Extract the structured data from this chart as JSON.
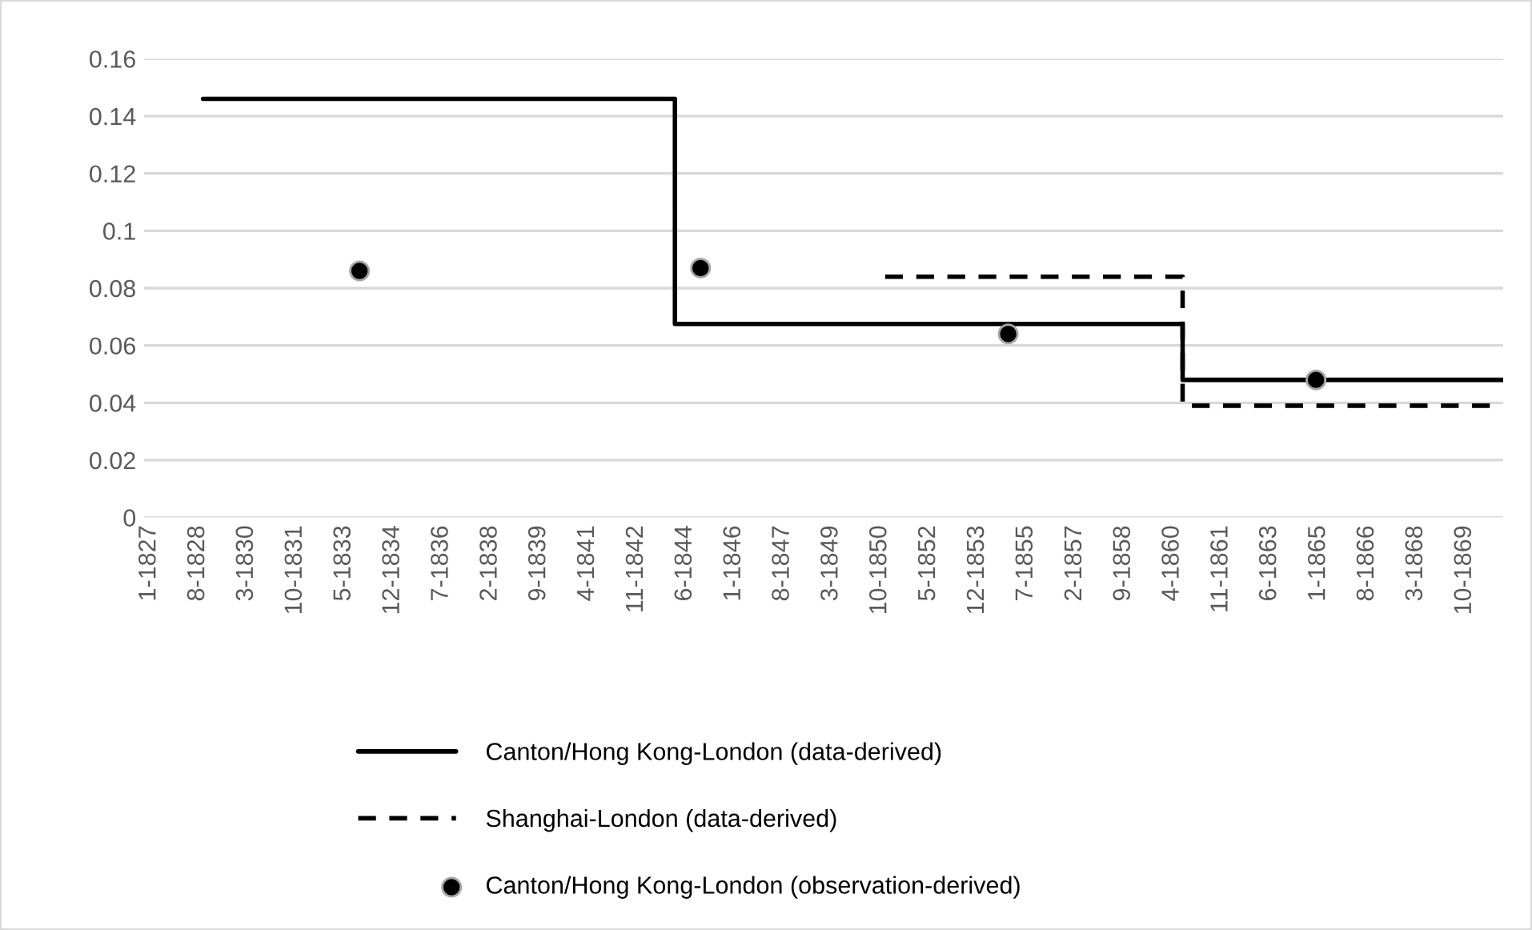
{
  "chart_data": {
    "type": "step",
    "series": [
      {
        "name": "Canton/Hong Kong-London (data-derived)",
        "color": "#000000",
        "line_style": "solid",
        "x": [
          "1828-10",
          "1844-02",
          "1860-08",
          "1871-01"
        ],
        "values": [
          0.146,
          0.0675,
          0.048,
          0.048
        ]
      },
      {
        "name": "Shanghai-London (data-derived)",
        "color": "#000000",
        "line_style": "dashed",
        "x": [
          "1850-12",
          "1860-08",
          "1870-08"
        ],
        "values": [
          0.084,
          0.039,
          0.039
        ]
      },
      {
        "name": "Canton/Hong Kong-London (observation-derived)",
        "type": "scatter",
        "color": "#000000",
        "marker": "circle",
        "x": [
          "1833-11",
          "1844-12",
          "1854-12",
          "1864-12"
        ],
        "values": [
          0.086,
          0.087,
          0.064,
          0.048
        ]
      }
    ],
    "xlim": [
      "1826-11",
      "1871-01"
    ],
    "xticks": [
      {
        "value": "1827-01",
        "label": "1-1827"
      },
      {
        "value": "1828-08",
        "label": "8-1828"
      },
      {
        "value": "1830-03",
        "label": "3-1830"
      },
      {
        "value": "1831-10",
        "label": "10-1831"
      },
      {
        "value": "1833-05",
        "label": "5-1833"
      },
      {
        "value": "1834-12",
        "label": "12-1834"
      },
      {
        "value": "1836-07",
        "label": "7-1836"
      },
      {
        "value": "1838-02",
        "label": "2-1838"
      },
      {
        "value": "1839-09",
        "label": "9-1839"
      },
      {
        "value": "1841-04",
        "label": "4-1841"
      },
      {
        "value": "1842-11",
        "label": "11-1842"
      },
      {
        "value": "1844-06",
        "label": "6-1844"
      },
      {
        "value": "1846-01",
        "label": "1-1846"
      },
      {
        "value": "1847-08",
        "label": "8-1847"
      },
      {
        "value": "1849-03",
        "label": "3-1849"
      },
      {
        "value": "1850-10",
        "label": "10-1850"
      },
      {
        "value": "1852-05",
        "label": "5-1852"
      },
      {
        "value": "1853-12",
        "label": "12-1853"
      },
      {
        "value": "1855-07",
        "label": "7-1855"
      },
      {
        "value": "1857-02",
        "label": "2-1857"
      },
      {
        "value": "1858-09",
        "label": "9-1858"
      },
      {
        "value": "1860-04",
        "label": "4-1860"
      },
      {
        "value": "1861-11",
        "label": "11-1861"
      },
      {
        "value": "1863-06",
        "label": "6-1863"
      },
      {
        "value": "1865-01",
        "label": "1-1865"
      },
      {
        "value": "1866-08",
        "label": "8-1866"
      },
      {
        "value": "1868-03",
        "label": "3-1868"
      },
      {
        "value": "1869-10",
        "label": "10-1869"
      }
    ],
    "ylim": [
      0,
      0.16
    ],
    "yticks": [
      0,
      0.02,
      0.04,
      0.06,
      0.08,
      {
        "value": 0.1,
        "label": "0.1"
      },
      0.12,
      0.14,
      0.16
    ],
    "grid": "y",
    "legend": "bottom"
  }
}
